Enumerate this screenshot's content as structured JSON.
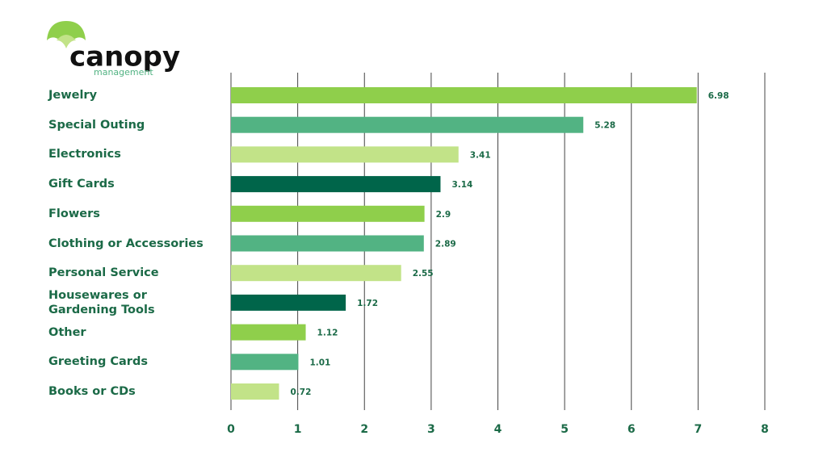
{
  "logo": {
    "name": "canopy",
    "tagline": "management"
  },
  "chart_data": {
    "type": "hbar",
    "categories": [
      "Jewelry",
      "Special Outing",
      "Electronics",
      "Gift Cards",
      "Flowers",
      "Clothing or Accessories",
      "Personal Service",
      "Housewares or Gardening Tools",
      "Other",
      "Greeting Cards",
      "Books or CDs"
    ],
    "values": [
      6.98,
      5.28,
      3.41,
      3.14,
      2.9,
      2.89,
      2.55,
      1.72,
      1.12,
      1.01,
      0.72
    ],
    "colors": [
      "#8fcf4b",
      "#52b383",
      "#c2e388",
      "#00654a",
      "#8fcf4b",
      "#52b383",
      "#c2e388",
      "#00654a",
      "#8fcf4b",
      "#52b383",
      "#c2e388"
    ],
    "xlim": [
      0,
      8
    ],
    "xticks": [
      0,
      1,
      2,
      3,
      4,
      5,
      6,
      7,
      8
    ],
    "grid": true
  }
}
